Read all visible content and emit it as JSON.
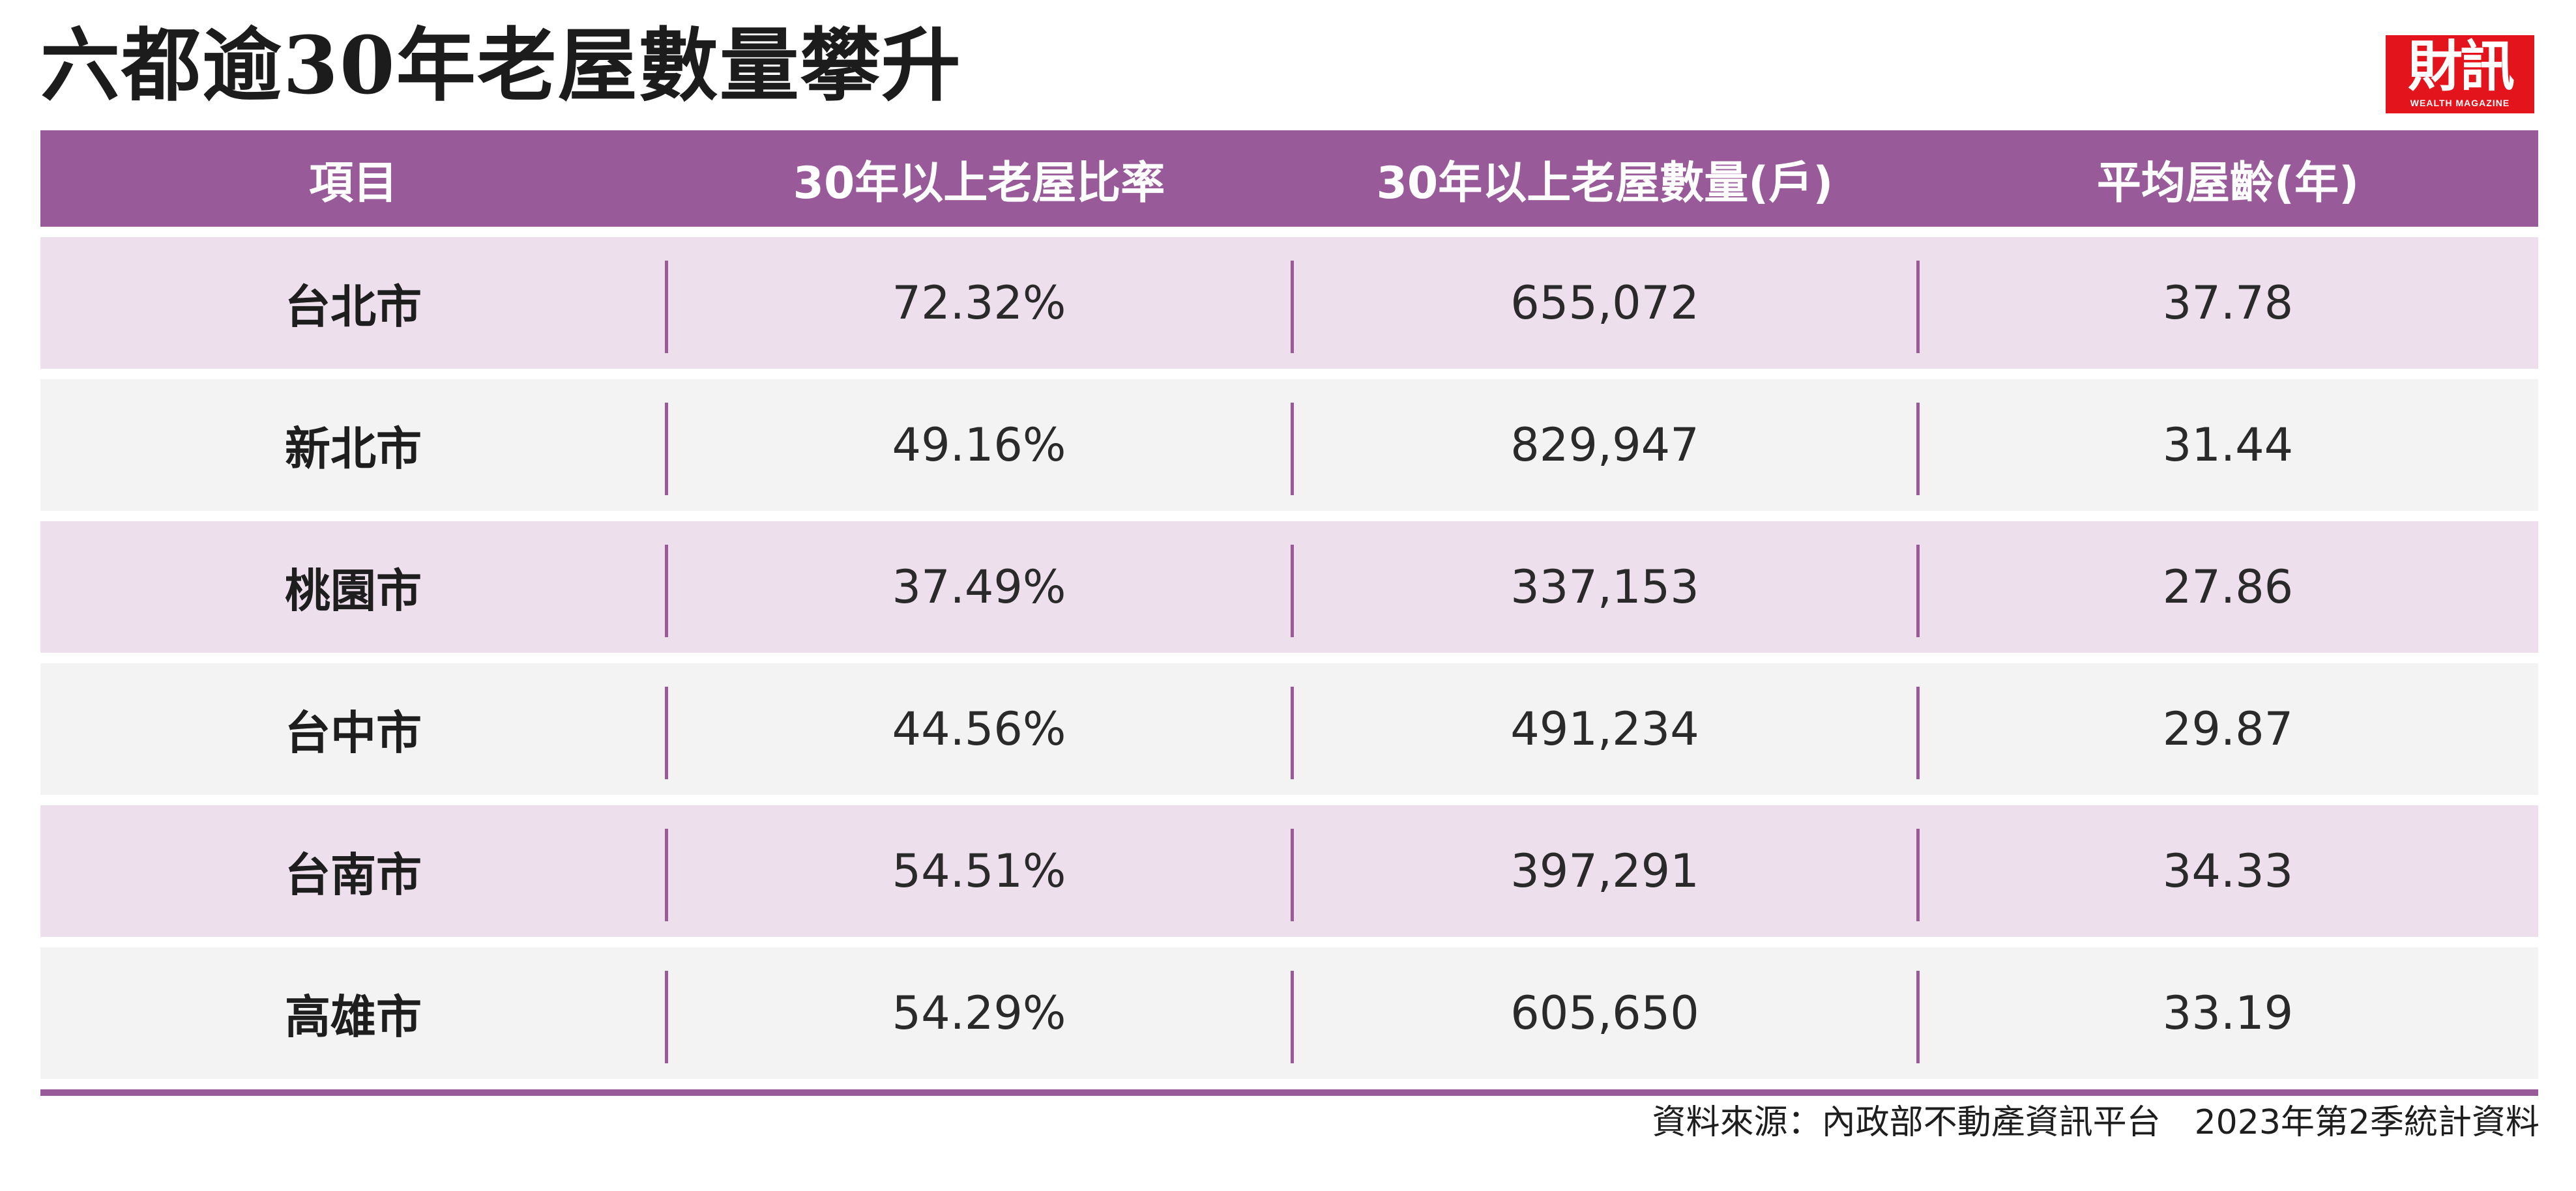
{
  "title": "六都逾30年老屋數量攀升",
  "logo": {
    "main": "財訊",
    "sub": "WEALTH MAGAZINE",
    "color": "#e3141b"
  },
  "table": {
    "header_color": "#985a98",
    "headers": [
      "項目",
      "30年以上老屋比率",
      "30年以上老屋數量(戶)",
      "平均屋齡(年)"
    ],
    "rows": [
      {
        "city": "台北市",
        "ratio": "72.32%",
        "count": "655,072",
        "age": "37.78"
      },
      {
        "city": "新北市",
        "ratio": "49.16%",
        "count": "829,947",
        "age": "31.44"
      },
      {
        "city": "桃園市",
        "ratio": "37.49%",
        "count": "337,153",
        "age": "27.86"
      },
      {
        "city": "台中市",
        "ratio": "44.56%",
        "count": "491,234",
        "age": "29.87"
      },
      {
        "city": "台南市",
        "ratio": "54.51%",
        "count": "397,291",
        "age": "34.33"
      },
      {
        "city": "高雄市",
        "ratio": "54.29%",
        "count": "605,650",
        "age": "33.19"
      }
    ]
  },
  "source": "資料來源：內政部不動產資訊平台　2023年第2季統計資料"
}
